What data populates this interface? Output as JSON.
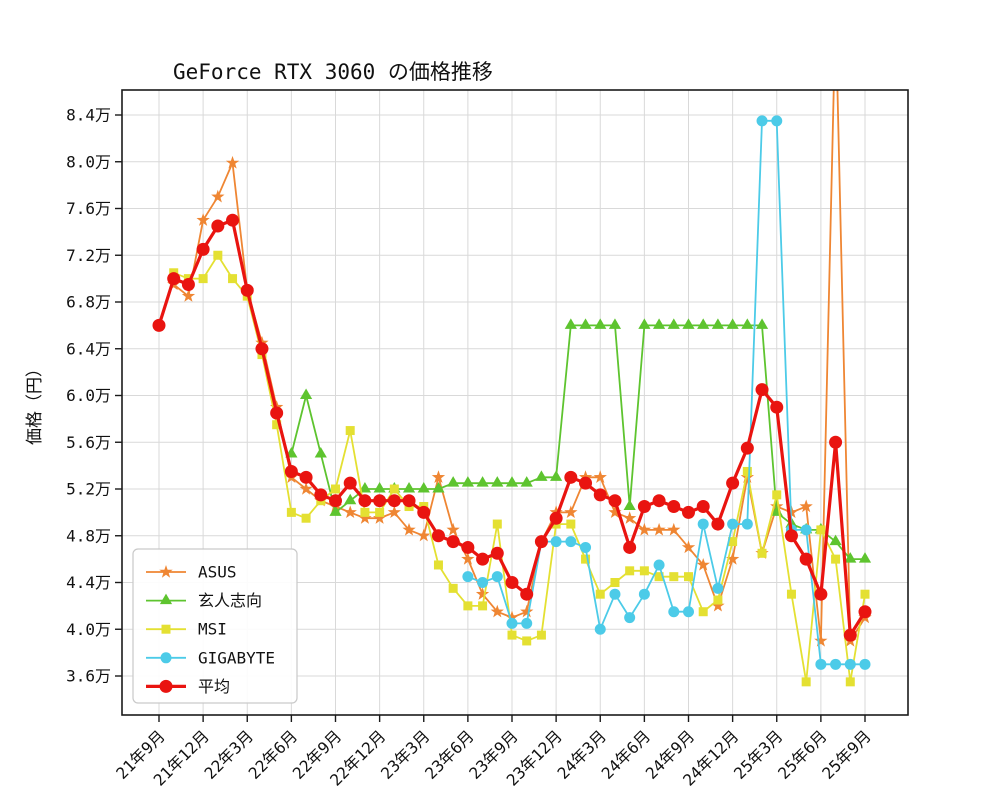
{
  "chart": {
    "title": "GeForce RTX 3060 の価格推移",
    "ylabel": "価格（円）"
  },
  "chart_data": {
    "type": "line",
    "title": "GeForce RTX 3060 の価格推移",
    "xlabel": "",
    "ylabel": "価格（円）",
    "grid": true,
    "legend_position": "lower left",
    "unit": "万円",
    "ylim": [
      3.27,
      8.61
    ],
    "yticks": {
      "values": [
        8.4,
        8.0,
        7.6,
        7.2,
        6.8,
        6.4,
        6.0,
        5.6,
        5.2,
        4.8,
        4.4,
        4.0,
        3.6
      ],
      "labels": [
        "8.4万",
        "8.0万",
        "7.6万",
        "7.2万",
        "6.8万",
        "6.4万",
        "6.0万",
        "5.6万",
        "5.2万",
        "4.8万",
        "4.4万",
        "4.0万",
        "3.6万"
      ]
    },
    "x_months_total": 49,
    "x_tick_indices": [
      0,
      3,
      6,
      9,
      12,
      15,
      18,
      21,
      24,
      27,
      30,
      33,
      36,
      39,
      42,
      45,
      48
    ],
    "x_tick_labels": [
      "21年9月",
      "21年12月",
      "22年3月",
      "22年6月",
      "22年9月",
      "22年12月",
      "23年3月",
      "23年6月",
      "23年9月",
      "23年12月",
      "24年3月",
      "24年6月",
      "24年9月",
      "24年12月",
      "25年3月",
      "25年6月",
      "25年9月"
    ],
    "series": [
      {
        "name": "ASUS",
        "color": "#ef8633",
        "marker": "star",
        "linewidth": 1.8,
        "values": [
          null,
          6.95,
          6.85,
          7.5,
          7.7,
          7.99,
          6.9,
          6.45,
          5.9,
          5.3,
          5.2,
          5.1,
          5.05,
          5.0,
          4.95,
          4.95,
          5.0,
          4.85,
          4.8,
          5.3,
          4.85,
          4.6,
          4.3,
          4.15,
          4.1,
          4.15,
          4.75,
          5.0,
          5.0,
          5.3,
          5.3,
          5.0,
          4.95,
          4.85,
          4.85,
          4.85,
          4.7,
          4.55,
          4.2,
          4.6,
          5.3,
          4.65,
          5.05,
          5.0,
          5.05,
          3.9,
          9.3,
          3.9,
          4.1
        ]
      },
      {
        "name": "玄人志向",
        "color": "#5ec42f",
        "marker": "triangle",
        "linewidth": 1.8,
        "values": [
          null,
          null,
          null,
          null,
          null,
          null,
          null,
          null,
          null,
          5.5,
          6.0,
          5.5,
          5.0,
          5.1,
          5.2,
          5.2,
          5.2,
          5.2,
          5.2,
          5.2,
          5.25,
          5.25,
          5.25,
          5.25,
          5.25,
          5.25,
          5.3,
          5.3,
          6.6,
          6.6,
          6.6,
          6.6,
          5.05,
          6.6,
          6.6,
          6.6,
          6.6,
          6.6,
          6.6,
          6.6,
          6.6,
          6.6,
          5.0,
          4.9,
          4.85,
          4.85,
          4.75,
          4.6,
          4.6
        ]
      },
      {
        "name": "MSI",
        "color": "#e4e032",
        "marker": "square",
        "linewidth": 1.8,
        "values": [
          null,
          7.05,
          7.0,
          7.0,
          7.2,
          7.0,
          6.85,
          6.35,
          5.75,
          5.0,
          4.95,
          5.1,
          5.2,
          5.7,
          5.0,
          5.0,
          5.2,
          5.05,
          5.05,
          4.55,
          4.35,
          4.2,
          4.2,
          4.9,
          3.95,
          3.9,
          3.95,
          4.9,
          4.9,
          4.6,
          4.3,
          4.4,
          4.5,
          4.5,
          4.45,
          4.45,
          4.45,
          4.15,
          4.25,
          4.75,
          5.35,
          4.65,
          5.15,
          4.3,
          3.55,
          4.85,
          4.6,
          3.55,
          4.3
        ]
      },
      {
        "name": "GIGABYTE",
        "color": "#4ccbe8",
        "marker": "circle",
        "linewidth": 1.8,
        "values": [
          null,
          null,
          null,
          null,
          null,
          null,
          null,
          null,
          null,
          null,
          null,
          null,
          null,
          null,
          null,
          null,
          null,
          null,
          null,
          null,
          null,
          4.45,
          4.4,
          4.45,
          4.05,
          4.05,
          4.75,
          4.75,
          4.75,
          4.7,
          4.0,
          4.3,
          4.1,
          4.3,
          4.55,
          4.15,
          4.15,
          4.9,
          4.35,
          4.9,
          4.9,
          8.35,
          8.35,
          4.85,
          4.85,
          3.7,
          3.7,
          3.7,
          3.7
        ]
      },
      {
        "name": "平均",
        "color": "#e91410",
        "marker": "circle",
        "linewidth": 3.2,
        "values": [
          6.6,
          7.0,
          6.95,
          7.25,
          7.45,
          7.5,
          6.9,
          6.4,
          5.85,
          5.35,
          5.3,
          5.15,
          5.1,
          5.25,
          5.1,
          5.1,
          5.1,
          5.1,
          5.0,
          4.8,
          4.75,
          4.7,
          4.6,
          4.65,
          4.4,
          4.3,
          4.75,
          4.95,
          5.3,
          5.25,
          5.15,
          5.1,
          4.7,
          5.05,
          5.1,
          5.05,
          5.0,
          5.05,
          4.9,
          5.25,
          5.55,
          6.05,
          5.9,
          4.8,
          4.6,
          4.3,
          5.6,
          3.95,
          4.15
        ]
      }
    ]
  }
}
